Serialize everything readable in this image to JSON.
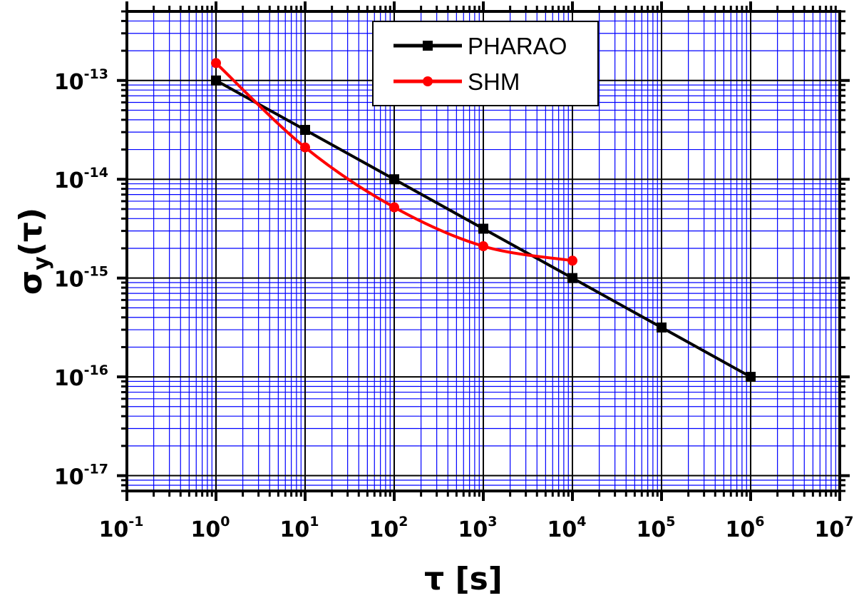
{
  "chart_data": {
    "type": "line",
    "title": "",
    "xlabel": "τ [s]",
    "ylabel": "σy(τ)",
    "xscale": "log",
    "yscale": "log",
    "xlim": [
      0.1,
      10000000
    ],
    "ylim": [
      7e-18,
      5e-13
    ],
    "grid": true,
    "grid_colors": {
      "major": "#000000",
      "minor": "#0000ff"
    },
    "legend_position": "top-center",
    "x_ticks": [
      {
        "base": "10",
        "exp": "-1"
      },
      {
        "base": "10",
        "exp": "0"
      },
      {
        "base": "10",
        "exp": "1"
      },
      {
        "base": "10",
        "exp": "2"
      },
      {
        "base": "10",
        "exp": "3"
      },
      {
        "base": "10",
        "exp": "4"
      },
      {
        "base": "10",
        "exp": "5"
      },
      {
        "base": "10",
        "exp": "6"
      },
      {
        "base": "10",
        "exp": "7"
      }
    ],
    "y_ticks": [
      {
        "base": "10",
        "exp": "-13"
      },
      {
        "base": "10",
        "exp": "-14"
      },
      {
        "base": "10",
        "exp": "-15"
      },
      {
        "base": "10",
        "exp": "-16"
      },
      {
        "base": "10",
        "exp": "-17"
      }
    ],
    "series": [
      {
        "name": "PHARAO",
        "color": "#000000",
        "marker": "square",
        "x": [
          1,
          10,
          100,
          1000,
          10000,
          100000,
          1000000
        ],
        "y": [
          1e-13,
          3.16e-14,
          1e-14,
          3.16e-15,
          1e-15,
          3.16e-16,
          1e-16
        ]
      },
      {
        "name": "SHM",
        "color": "#ff0000",
        "marker": "circle",
        "smooth": true,
        "x": [
          1,
          10,
          100,
          1000,
          10000
        ],
        "y": [
          1.5e-13,
          2.1e-14,
          5.2e-15,
          2.1e-15,
          1.5e-15
        ]
      }
    ]
  }
}
